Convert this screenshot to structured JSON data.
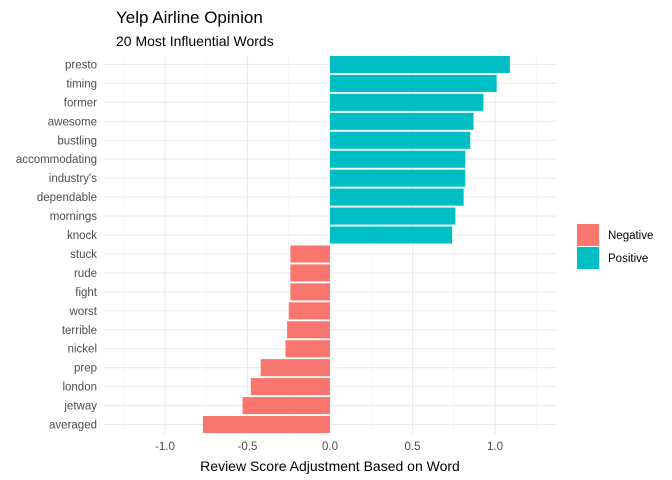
{
  "chart_data": {
    "type": "bar",
    "orientation": "horizontal",
    "title": "Yelp Airline Opinion",
    "subtitle": "20 Most Influential Words",
    "xlabel": "Review Score Adjustment Based on Word",
    "ylabel": "",
    "xlim": [
      -1.25,
      1.36
    ],
    "xticks": [
      -1.0,
      -0.5,
      0.0,
      0.5,
      1.0
    ],
    "xtick_labels": [
      "-1.0",
      "-0.5",
      "0.0",
      "0.5",
      "1.0"
    ],
    "grid": true,
    "legend_position": "right",
    "legend": [
      {
        "name": "Negative",
        "color": "#F8766D"
      },
      {
        "name": "Positive",
        "color": "#00BFC4"
      }
    ],
    "categories": [
      "presto",
      "timing",
      "former",
      "awesome",
      "bustling",
      "accommodating",
      "industry's",
      "dependable",
      "mornings",
      "knock",
      "stuck",
      "rude",
      "fight",
      "worst",
      "terrible",
      "nickel",
      "prep",
      "london",
      "jetway",
      "averaged"
    ],
    "values": [
      1.09,
      1.01,
      0.93,
      0.87,
      0.85,
      0.82,
      0.82,
      0.81,
      0.76,
      0.74,
      -0.24,
      -0.24,
      -0.24,
      -0.25,
      -0.26,
      -0.27,
      -0.42,
      -0.48,
      -0.53,
      -0.77
    ],
    "sentiment": [
      "Positive",
      "Positive",
      "Positive",
      "Positive",
      "Positive",
      "Positive",
      "Positive",
      "Positive",
      "Positive",
      "Positive",
      "Negative",
      "Negative",
      "Negative",
      "Negative",
      "Negative",
      "Negative",
      "Negative",
      "Negative",
      "Negative",
      "Negative"
    ]
  }
}
